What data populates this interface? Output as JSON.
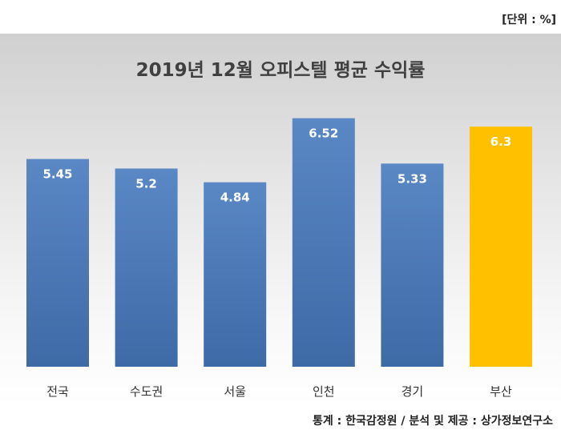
{
  "unit_label": "[단위 : %]",
  "source_label": "통계 : 한국감정원 / 분석 및 제공 : 상가정보연구소",
  "colors": {
    "bar": "#4a78b4",
    "highlight": "#ffc000"
  },
  "chart_data": {
    "type": "bar",
    "title": "2019년 12월 오피스텔 평균 수익률",
    "categories": [
      "전국",
      "수도권",
      "서울",
      "인천",
      "경기",
      "부산"
    ],
    "values": [
      5.45,
      5.2,
      4.84,
      6.52,
      5.33,
      6.3
    ],
    "data_labels": [
      "5.45",
      "5.2",
      "4.84",
      "6.52",
      "5.33",
      "6.3"
    ],
    "highlight_category": "부산",
    "xlabel": "",
    "ylabel": "",
    "ylim": [
      0,
      7
    ],
    "grid": false,
    "legend": "none"
  }
}
